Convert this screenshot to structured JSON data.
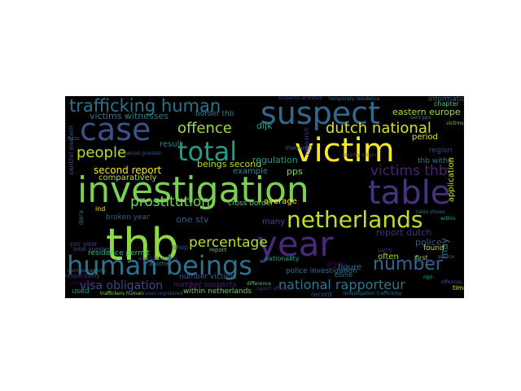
{
  "wordcloud": {
    "background": "#000000",
    "words": [
      {
        "text": "investigation",
        "color": "#7ad151"
      },
      {
        "text": "thb",
        "color": "#8fd744"
      },
      {
        "text": "victim",
        "color": "#fde725"
      },
      {
        "text": "netherlands",
        "color": "#c2df23"
      },
      {
        "text": "human beings",
        "color": "#2c728e"
      },
      {
        "text": "year",
        "color": "#482878"
      },
      {
        "text": "table",
        "color": "#46327e"
      },
      {
        "text": "suspect",
        "color": "#31688e"
      },
      {
        "text": "case",
        "color": "#3b528b"
      },
      {
        "text": "total",
        "color": "#1f9e89"
      },
      {
        "text": "trafficking human",
        "color": "#2c728e"
      },
      {
        "text": "dutch national",
        "color": "#d8e219"
      },
      {
        "text": "number",
        "color": "#31688e"
      },
      {
        "text": "people",
        "color": "#b5de2b"
      },
      {
        "text": "offence",
        "color": "#a0da39"
      },
      {
        "text": "prostitution",
        "color": "#73d056"
      },
      {
        "text": "percentage",
        "color": "#b5de2b"
      },
      {
        "text": "victims thb",
        "color": "#482475"
      },
      {
        "text": "national rapporteur",
        "color": "#2a788e"
      },
      {
        "text": "second report",
        "color": "#fde725"
      },
      {
        "text": "beings second",
        "color": "#bddf26"
      },
      {
        "text": "visa obligation",
        "color": "#3e4989"
      },
      {
        "text": "report dutch",
        "color": "#472c7a"
      },
      {
        "text": "eastern europe",
        "color": "#a5db36"
      },
      {
        "text": "victims witnesses",
        "color": "#2a788e"
      },
      {
        "text": "one stv",
        "color": "#38588c"
      },
      {
        "text": "regulation",
        "color": "#1f968b"
      },
      {
        "text": "pps",
        "color": "#8bd646"
      },
      {
        "text": "average",
        "color": "#fde725"
      },
      {
        "text": "period",
        "color": "#e5e419"
      },
      {
        "text": "police",
        "color": "#3b528b"
      },
      {
        "text": "often",
        "color": "#9dd93b"
      },
      {
        "text": "figure",
        "color": "#2a788e"
      },
      {
        "text": "may",
        "color": "#2c728e"
      },
      {
        "text": "dijk",
        "color": "#1f9e89"
      },
      {
        "text": "example",
        "color": "#23898e"
      },
      {
        "text": "result",
        "color": "#25838e"
      },
      {
        "text": "many",
        "color": "#3e4a89"
      },
      {
        "text": "involved",
        "color": "#34618d"
      },
      {
        "text": "police investigation",
        "color": "#2d708e"
      },
      {
        "text": "cross border",
        "color": "#5ec962"
      },
      {
        "text": "number suspects",
        "color": "#482173"
      },
      {
        "text": "within netherlands",
        "color": "#6ece58"
      },
      {
        "text": "residence permit",
        "color": "#35b779"
      },
      {
        "text": "nationality",
        "color": "#1fa188"
      },
      {
        "text": "come",
        "color": "#2e6e8e"
      },
      {
        "text": "record",
        "color": "#39568c"
      },
      {
        "text": "found",
        "color": "#addc30"
      },
      {
        "text": "first",
        "color": "#95d840"
      },
      {
        "text": "region",
        "color": "#3f4788"
      },
      {
        "text": "thb within",
        "color": "#2a768e"
      },
      {
        "text": "application",
        "color": "#d0e11c"
      },
      {
        "text": "information",
        "color": "#35608d"
      },
      {
        "text": "chapter",
        "color": "#4ac16d"
      },
      {
        "text": "central eastern",
        "color": "#3b528b"
      },
      {
        "text": "border thb",
        "color": "#26828e"
      },
      {
        "text": "number victims",
        "color": "#34618d"
      },
      {
        "text": "per year",
        "color": "#453882"
      },
      {
        "text": "shop",
        "color": "#3a538b"
      },
      {
        "text": "ind",
        "color": "#fde725"
      },
      {
        "text": "dara",
        "color": "#2e6d8e"
      },
      {
        "text": "research",
        "color": "#453781"
      },
      {
        "text": "comparatively",
        "color": "#b8de29"
      },
      {
        "text": "broken year",
        "color": "#365d8d"
      },
      {
        "text": "used",
        "color": "#1f998a"
      },
      {
        "text": "respectively",
        "color": "#433e85"
      },
      {
        "text": "another",
        "color": "#2b758e"
      },
      {
        "text": "report",
        "color": "#48c16e"
      },
      {
        "text": "argue",
        "color": "#440154"
      },
      {
        "text": "total number",
        "color": "#3d4d8a"
      },
      {
        "text": "time",
        "color": "#cde11d"
      },
      {
        "text": "suspects arrested",
        "color": "#414487"
      },
      {
        "text": "temporary residence",
        "color": "#2d708e"
      },
      {
        "text": "traffickers human",
        "color": "#7fd34e"
      },
      {
        "text": "cases registered",
        "color": "#3c4f8a"
      },
      {
        "text": "investigation trafficking",
        "color": "#2f6c8e"
      },
      {
        "text": "sent pps",
        "color": "#25848e"
      },
      {
        "text": "perhaps",
        "color": "#482576"
      },
      {
        "text": "victims",
        "color": "#6ccd5a"
      },
      {
        "text": "according",
        "color": "#440154"
      },
      {
        "text": "difference",
        "color": "#52c569"
      },
      {
        "text": "country origin",
        "color": "#3e4989"
      },
      {
        "text": "table shows",
        "color": "#2e6f8e"
      },
      {
        "text": "partly",
        "color": "#472d7b"
      },
      {
        "text": "source",
        "color": "#2a788e"
      },
      {
        "text": "period granted",
        "color": "#365c8d"
      },
      {
        "text": "ngo",
        "color": "#1f9e89"
      },
      {
        "text": "facts",
        "color": "#31688e"
      },
      {
        "text": "within",
        "color": "#20a386"
      },
      {
        "text": "offences",
        "color": "#3b528b"
      },
      {
        "text": "number reports",
        "color": "#2c718e"
      },
      {
        "text": "report offence",
        "color": "#46337f"
      },
      {
        "text": "average victims",
        "color": "#443a83"
      }
    ]
  }
}
